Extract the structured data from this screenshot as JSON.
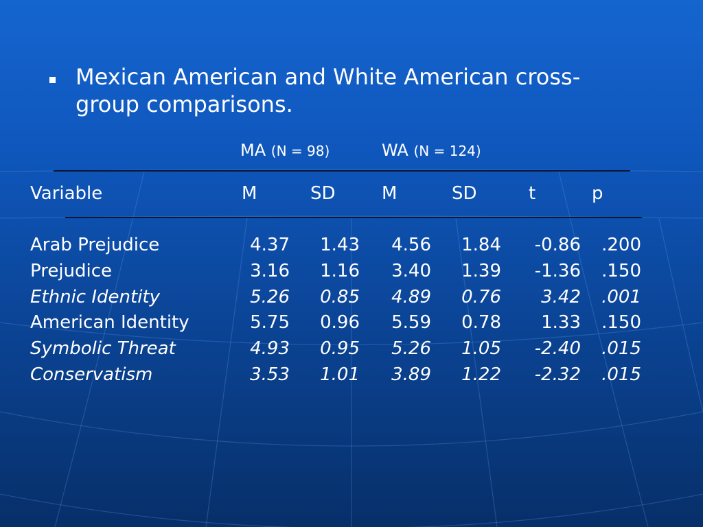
{
  "slide": {
    "bullet_text": "Mexican American and White American cross-group comparisons."
  },
  "table": {
    "groups": [
      {
        "name": "MA",
        "n": "(N = 98)"
      },
      {
        "name": "WA",
        "n": "(N = 124)"
      }
    ],
    "headers": {
      "variable": "Variable",
      "ma_m": "M",
      "ma_sd": "SD",
      "wa_m": "M",
      "wa_sd": "SD",
      "t": "t",
      "p": "p"
    },
    "rows": [
      {
        "variable": "Arab Prejudice",
        "italic": false,
        "ma_m": "4.37",
        "ma_sd": "1.43",
        "wa_m": "4.56",
        "wa_sd": "1.84",
        "t": "-0.86",
        "p": ".200"
      },
      {
        "variable": "Prejudice",
        "italic": false,
        "ma_m": "3.16",
        "ma_sd": "1.16",
        "wa_m": "3.40",
        "wa_sd": "1.39",
        "t": "-1.36",
        "p": ".150"
      },
      {
        "variable": "Ethnic Identity",
        "italic": true,
        "ma_m": "5.26",
        "ma_sd": "0.85",
        "wa_m": "4.89",
        "wa_sd": "0.76",
        "t": "3.42",
        "p": ".001"
      },
      {
        "variable": "American Identity",
        "italic": false,
        "ma_m": "5.75",
        "ma_sd": "0.96",
        "wa_m": "5.59",
        "wa_sd": "0.78",
        "t": "1.33",
        "p": ".150"
      },
      {
        "variable": "Symbolic Threat",
        "italic": true,
        "ma_m": "4.93",
        "ma_sd": "0.95",
        "wa_m": "5.26",
        "wa_sd": "1.05",
        "t": "-2.40",
        "p": ".015"
      },
      {
        "variable": "Conservatism",
        "italic": true,
        "ma_m": "3.53",
        "ma_sd": "1.01",
        "wa_m": "3.89",
        "wa_sd": "1.22",
        "t": "-2.32",
        "p": ".015"
      }
    ]
  },
  "colors": {
    "background_top": "#1565cf",
    "background_bottom": "#072f69",
    "text": "#ffffff",
    "rule": "#0a1633"
  }
}
